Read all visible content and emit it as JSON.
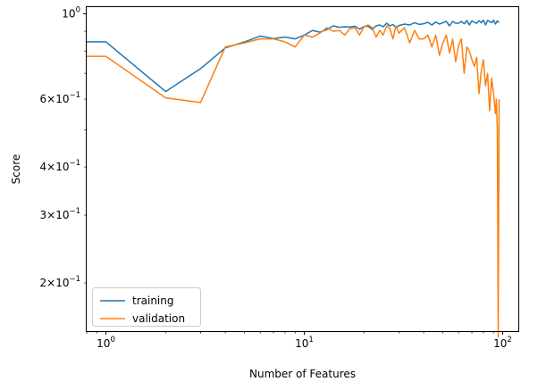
{
  "chart_data": {
    "type": "line",
    "title": "",
    "xlabel": "Number of Features",
    "ylabel": "Score",
    "x_scale": "log",
    "y_scale": "log",
    "xlim": [
      0.8,
      120
    ],
    "ylim": [
      0.15,
      1.04
    ],
    "grid": false,
    "legend_position": "lower-left",
    "x_ticks": [
      {
        "value": 1,
        "base": "10",
        "exp": "0"
      },
      {
        "value": 10,
        "base": "10",
        "exp": "1"
      },
      {
        "value": 100,
        "base": "10",
        "exp": "2"
      }
    ],
    "y_ticks": [
      {
        "value": 1.0,
        "mant": "",
        "base": "10",
        "exp": "0"
      },
      {
        "value": 0.6,
        "mant": "6×",
        "base": "10",
        "exp": "−1"
      },
      {
        "value": 0.4,
        "mant": "4×",
        "base": "10",
        "exp": "−1"
      },
      {
        "value": 0.3,
        "mant": "3×",
        "base": "10",
        "exp": "−1"
      },
      {
        "value": 0.2,
        "mant": "2×",
        "base": "10",
        "exp": "−1"
      }
    ],
    "series": [
      {
        "name": "training",
        "color": "#1f77b4",
        "x": [
          0.8,
          1,
          2,
          3,
          4,
          5,
          6,
          7,
          8,
          9,
          10,
          11,
          12,
          13,
          14,
          15,
          16,
          17,
          18,
          19,
          20,
          21,
          22,
          23,
          24,
          25,
          26,
          27,
          28,
          29,
          30,
          32,
          34,
          36,
          38,
          40,
          42,
          44,
          46,
          48,
          50,
          52,
          54,
          56,
          58,
          60,
          62,
          64,
          66,
          68,
          70,
          72,
          74,
          76,
          78,
          80,
          82,
          84,
          86,
          88,
          90,
          92,
          94,
          96
        ],
        "y": [
          0.845,
          0.845,
          0.628,
          0.72,
          0.815,
          0.845,
          0.875,
          0.862,
          0.87,
          0.86,
          0.88,
          0.905,
          0.895,
          0.91,
          0.93,
          0.922,
          0.925,
          0.924,
          0.928,
          0.912,
          0.926,
          0.928,
          0.91,
          0.93,
          0.935,
          0.925,
          0.945,
          0.93,
          0.938,
          0.92,
          0.932,
          0.94,
          0.935,
          0.948,
          0.938,
          0.942,
          0.95,
          0.935,
          0.952,
          0.94,
          0.948,
          0.955,
          0.93,
          0.955,
          0.945,
          0.945,
          0.955,
          0.942,
          0.96,
          0.935,
          0.958,
          0.95,
          0.945,
          0.96,
          0.948,
          0.962,
          0.935,
          0.96,
          0.955,
          0.948,
          0.962,
          0.94,
          0.958,
          0.95
        ]
      },
      {
        "name": "validation",
        "color": "#ff7f0e",
        "x": [
          0.8,
          1,
          2,
          3,
          4,
          5,
          6,
          7,
          8,
          9,
          10,
          11,
          12,
          13,
          14,
          15,
          16,
          17,
          18,
          19,
          20,
          21,
          22,
          23,
          24,
          25,
          26,
          27,
          28,
          29,
          30,
          32,
          34,
          36,
          38,
          40,
          42,
          44,
          46,
          48,
          50,
          52,
          54,
          56,
          58,
          60,
          62,
          64,
          66,
          68,
          70,
          72,
          74,
          76,
          78,
          80,
          82,
          84,
          86,
          88,
          90,
          92,
          93,
          94,
          95,
          96
        ],
        "y": [
          0.775,
          0.775,
          0.605,
          0.588,
          0.82,
          0.84,
          0.86,
          0.86,
          0.845,
          0.82,
          0.88,
          0.87,
          0.89,
          0.92,
          0.9,
          0.905,
          0.88,
          0.915,
          0.92,
          0.88,
          0.925,
          0.935,
          0.92,
          0.87,
          0.905,
          0.88,
          0.93,
          0.915,
          0.86,
          0.93,
          0.89,
          0.92,
          0.84,
          0.905,
          0.86,
          0.86,
          0.88,
          0.82,
          0.88,
          0.78,
          0.84,
          0.88,
          0.79,
          0.86,
          0.75,
          0.83,
          0.86,
          0.7,
          0.82,
          0.8,
          0.76,
          0.73,
          0.77,
          0.62,
          0.71,
          0.76,
          0.65,
          0.7,
          0.56,
          0.68,
          0.62,
          0.55,
          0.6,
          0.5,
          0.145,
          0.6
        ]
      }
    ]
  }
}
